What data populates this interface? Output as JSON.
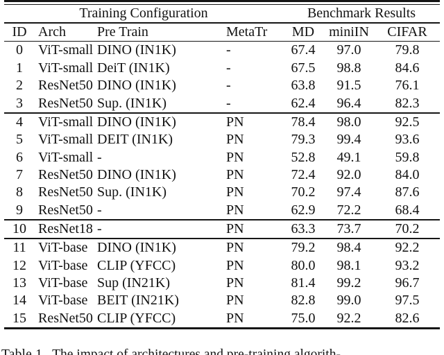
{
  "table": {
    "group_headers": {
      "training": "Training Configuration",
      "benchmark": "Benchmark Results"
    },
    "columns": {
      "id": "ID",
      "arch": "Arch",
      "pretrain": "Pre Train",
      "metatr": "MetaTr",
      "md": "MD",
      "miniin": "miniIN",
      "cifar": "CIFAR"
    },
    "rows": [
      {
        "id": "0",
        "arch": "ViT-small",
        "pretrain": "DINO (IN1K)",
        "metatr": "-",
        "md": "67.4",
        "miniin": "97.0",
        "cifar": "79.8"
      },
      {
        "id": "1",
        "arch": "ViT-small",
        "pretrain": "DeiT (IN1K)",
        "metatr": "-",
        "md": "67.5",
        "miniin": "98.8",
        "cifar": "84.6"
      },
      {
        "id": "2",
        "arch": "ResNet50",
        "pretrain": "DINO (IN1K)",
        "metatr": "-",
        "md": "63.8",
        "miniin": "91.5",
        "cifar": "76.1"
      },
      {
        "id": "3",
        "arch": "ResNet50",
        "pretrain": "Sup. (IN1K)",
        "metatr": "-",
        "md": "62.4",
        "miniin": "96.4",
        "cifar": "82.3"
      },
      {
        "id": "4",
        "arch": "ViT-small",
        "pretrain": "DINO (IN1K)",
        "metatr": "PN",
        "md": "78.4",
        "miniin": "98.0",
        "cifar": "92.5"
      },
      {
        "id": "5",
        "arch": "ViT-small",
        "pretrain": "DEIT (IN1K)",
        "metatr": "PN",
        "md": "79.3",
        "miniin": "99.4",
        "cifar": "93.6"
      },
      {
        "id": "6",
        "arch": "ViT-small",
        "pretrain": "-",
        "metatr": "PN",
        "md": "52.8",
        "miniin": "49.1",
        "cifar": "59.8"
      },
      {
        "id": "7",
        "arch": "ResNet50",
        "pretrain": "DINO (IN1K)",
        "metatr": "PN",
        "md": "72.4",
        "miniin": "92.0",
        "cifar": "84.0"
      },
      {
        "id": "8",
        "arch": "ResNet50",
        "pretrain": "Sup. (IN1K)",
        "metatr": "PN",
        "md": "70.2",
        "miniin": "97.4",
        "cifar": "87.6"
      },
      {
        "id": "9",
        "arch": "ResNet50",
        "pretrain": "-",
        "metatr": "PN",
        "md": "62.9",
        "miniin": "72.2",
        "cifar": "68.4"
      },
      {
        "id": "10",
        "arch": "ResNet18",
        "pretrain": "-",
        "metatr": "PN",
        "md": "63.3",
        "miniin": "73.7",
        "cifar": "70.2"
      },
      {
        "id": "11",
        "arch": "ViT-base",
        "pretrain": "DINO (IN1K)",
        "metatr": "PN",
        "md": "79.2",
        "miniin": "98.4",
        "cifar": "92.2"
      },
      {
        "id": "12",
        "arch": "ViT-base",
        "pretrain": "CLIP (YFCC)",
        "metatr": "PN",
        "md": "80.0",
        "miniin": "98.1",
        "cifar": "93.2"
      },
      {
        "id": "13",
        "arch": "ViT-base",
        "pretrain": "Sup (IN21K)",
        "metatr": "PN",
        "md": "81.4",
        "miniin": "99.2",
        "cifar": "96.7"
      },
      {
        "id": "14",
        "arch": "ViT-base",
        "pretrain": "BEIT (IN21K)",
        "metatr": "PN",
        "md": "82.8",
        "miniin": "99.0",
        "cifar": "97.5"
      },
      {
        "id": "15",
        "arch": "ResNet50",
        "pretrain": "CLIP (YFCC)",
        "metatr": "PN",
        "md": "75.0",
        "miniin": "92.2",
        "cifar": "82.6"
      }
    ],
    "section_breaks": [
      4,
      10,
      11
    ]
  },
  "caption": {
    "label": "Table 1.",
    "text": "The impact of architectures and pre-training algorith-"
  }
}
